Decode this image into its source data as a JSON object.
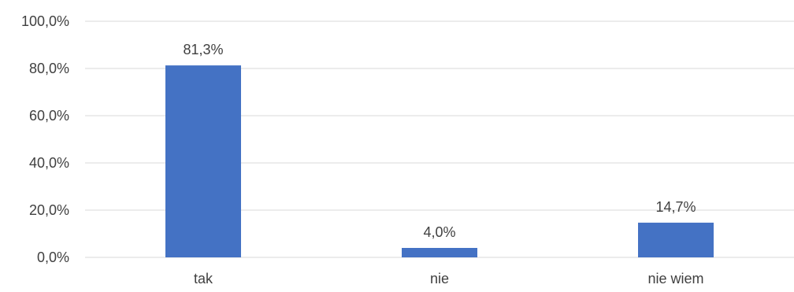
{
  "chart_data": {
    "type": "bar",
    "title": "",
    "xlabel": "",
    "ylabel": "",
    "categories": [
      "tak",
      "nie",
      "nie wiem"
    ],
    "values": [
      81.3,
      4.0,
      14.7
    ],
    "data_labels": [
      "81,3%",
      "4,0%",
      "14,7%"
    ],
    "ylim": [
      0,
      100
    ],
    "y_ticks": [
      0,
      20,
      40,
      60,
      80,
      100
    ],
    "y_tick_labels": [
      "0,0%",
      "20,0%",
      "40,0%",
      "60,0%",
      "80,0%",
      "100,0%"
    ],
    "bar_color": "#4472c4",
    "grid": true,
    "legend": "none"
  }
}
